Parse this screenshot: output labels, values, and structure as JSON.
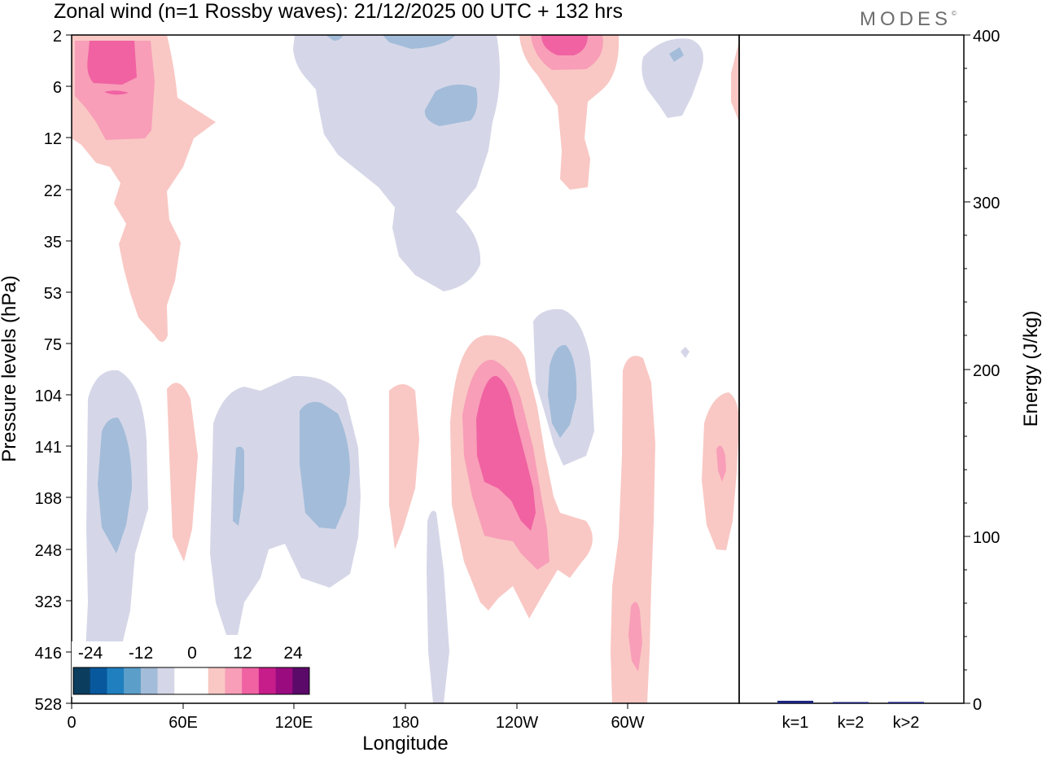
{
  "chart_data": [
    {
      "type": "heatmap",
      "title": "Zonal wind (n=1 Rossby waves):  21/12/2025  00 UTC  + 132 hrs",
      "xlabel": "Longitude",
      "ylabel": "Pressure levels (hPa)",
      "x_ticks": [
        "0",
        "60E",
        "120E",
        "180",
        "120W",
        "60W"
      ],
      "y_ticks": [
        "2",
        "6",
        "12",
        "22",
        "35",
        "53",
        "75",
        "104",
        "141",
        "188",
        "248",
        "323",
        "416",
        "528"
      ],
      "colorbar": {
        "tick_labels": [
          "-24",
          "-12",
          "0",
          "12",
          "24"
        ],
        "colors": [
          "#0b3d5e",
          "#08589e",
          "#1f7fbf",
          "#5a9ec9",
          "#a3bcd9",
          "#d5d7e8",
          "#ffffff",
          "#ffffff",
          "#f9c8c4",
          "#f89eb8",
          "#f062a2",
          "#c71d8a",
          "#9a0b80",
          "#5b0a6a"
        ]
      },
      "contour_levels": [
        "-12",
        "-6",
        "6",
        "12",
        "18"
      ]
    },
    {
      "type": "bar",
      "ylabel": "Energy (J/kg)",
      "categories": [
        "k=1",
        "k=2",
        "k>2"
      ],
      "values": [
        1.5,
        0.5,
        0.8
      ],
      "ylim": [
        0,
        400
      ],
      "y_ticks": [
        "0",
        "100",
        "200",
        "300",
        "400"
      ],
      "bar_colors": [
        "#1a237e",
        "#1a237e",
        "#1a237e"
      ]
    }
  ],
  "branding": {
    "logo_text": "MODES",
    "mark": "©"
  }
}
